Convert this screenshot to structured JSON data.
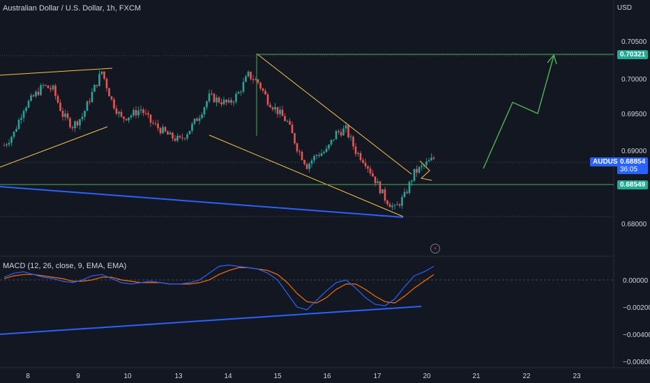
{
  "header": {
    "title": "Australian Dollar / U.S. Dollar, 1h, FXCM",
    "currency": "USD"
  },
  "macd": {
    "label": "MACD (12, 26, close, 9, EMA, EMA)",
    "ticks": [
      "0.00000",
      "−0.00200",
      "−0.00400",
      "−0.00600"
    ]
  },
  "price_axis": {
    "ticks": [
      "0.70500",
      "0.70000",
      "0.69500",
      "0.69000",
      "0.68000"
    ]
  },
  "tags": {
    "resistance": "0.70321",
    "symbol": "AUDUSD",
    "last_price": "0.68854",
    "countdown": "36:05",
    "support": "0.68549"
  },
  "colors": {
    "background": "#131722",
    "bull": "#26a69a",
    "bear": "#ef5350",
    "trendline": "#f7c744",
    "blue_line": "#2962ff",
    "green_line": "#4caf50",
    "macd_line": "#2962ff",
    "signal_line": "#ff6d00"
  },
  "chart_data": {
    "type": "candlestick",
    "title": "Australian Dollar / U.S. Dollar, 1h, FXCM",
    "x_labels": [
      "8",
      "9",
      "10",
      "13",
      "14",
      "15",
      "16",
      "17",
      "20",
      "21",
      "22",
      "23"
    ],
    "y_range": [
      0.678,
      0.7075
    ],
    "price_levels": {
      "resistance": 0.70321,
      "current": 0.68854,
      "support": 0.68549
    },
    "price_series_approx": [
      0.6908,
      0.6925,
      0.696,
      0.6975,
      0.699,
      0.6985,
      0.695,
      0.6935,
      0.6948,
      0.698,
      0.701,
      0.697,
      0.6945,
      0.695,
      0.6958,
      0.694,
      0.693,
      0.692,
      0.6915,
      0.693,
      0.695,
      0.6975,
      0.697,
      0.6965,
      0.698,
      0.7005,
      0.6995,
      0.697,
      0.6955,
      0.694,
      0.6905,
      0.688,
      0.6895,
      0.69,
      0.6925,
      0.693,
      0.69,
      0.6885,
      0.686,
      0.6835,
      0.682,
      0.6838,
      0.687,
      0.688,
      0.689
    ],
    "projection": [
      0.6877,
      0.6967,
      0.6953,
      0.7032
    ],
    "macd_range": [
      -0.0065,
      0.0015
    ],
    "macd_series_approx": [
      0.0002,
      0.0005,
      0.0006,
      0.0004,
      0.0002,
      0.0001,
      -0.0001,
      -0.0002,
      0.0,
      0.0003,
      0.0004,
      0.0001,
      -0.0002,
      -0.0003,
      -0.0002,
      -0.0001,
      -0.0002,
      -0.0003,
      -0.0003,
      -0.0002,
      0.0,
      0.0005,
      0.001,
      0.0011,
      0.001,
      0.0009,
      0.0008,
      0.0005,
      0.0,
      -0.001,
      -0.002,
      -0.0022,
      -0.0015,
      -0.0008,
      -0.0002,
      0.0,
      -0.0006,
      -0.0013,
      -0.0018,
      -0.0019,
      -0.0014,
      -0.0005,
      0.0003,
      0.0006,
      0.001
    ],
    "signal_series_approx": [
      0.0001,
      0.0003,
      0.0004,
      0.0004,
      0.0003,
      0.0002,
      0.0001,
      -0.0001,
      -0.0001,
      0.0,
      0.0002,
      0.0002,
      0.0,
      -0.0001,
      -0.0002,
      -0.0002,
      -0.0002,
      -0.0003,
      -0.0003,
      -0.0003,
      -0.0002,
      0.0,
      0.0004,
      0.0007,
      0.0009,
      0.0009,
      0.0008,
      0.0007,
      0.0004,
      -0.0002,
      -0.001,
      -0.0016,
      -0.0017,
      -0.0013,
      -0.0007,
      -0.0003,
      -0.0003,
      -0.0007,
      -0.0012,
      -0.0016,
      -0.0017,
      -0.0012,
      -0.0006,
      -0.0001,
      0.0004
    ]
  }
}
